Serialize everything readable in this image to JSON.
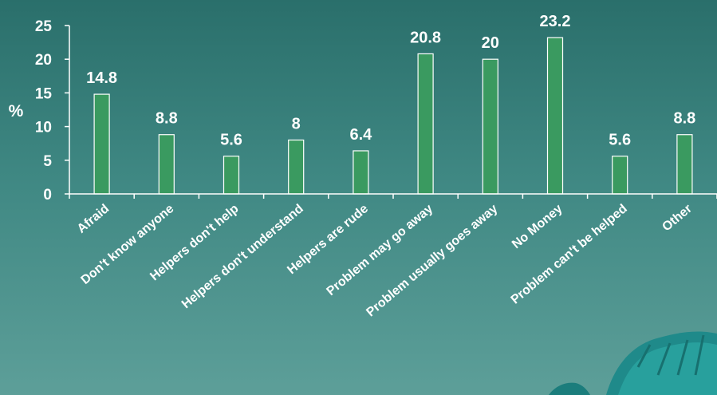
{
  "chart_data": {
    "type": "bar",
    "categories": [
      "Afraid",
      "Don't know anyone",
      "Helpers don't help",
      "Helpers don't understand",
      "Helpers are rude",
      "Problem may go away",
      "Problem usually goes away",
      "No Money",
      "Problem can't be helped",
      "Other"
    ],
    "values": [
      14.8,
      8.8,
      5.6,
      8,
      6.4,
      20.8,
      20,
      23.2,
      5.6,
      8.8
    ],
    "data_labels": [
      "14.8",
      "8.8",
      "5.6",
      "8",
      "6.4",
      "20.8",
      "20",
      "23.2",
      "5.6",
      "8.8"
    ],
    "title": "",
    "xlabel": "",
    "ylabel": "%",
    "ylim": [
      0,
      25
    ],
    "yticks": [
      0,
      5,
      10,
      15,
      20,
      25
    ],
    "grid": false,
    "legend": "none",
    "colors": {
      "bar_fill": "#3a9a60",
      "bar_stroke": "#ffffff",
      "axis": "#ffffff",
      "text": "#ffffff"
    }
  }
}
